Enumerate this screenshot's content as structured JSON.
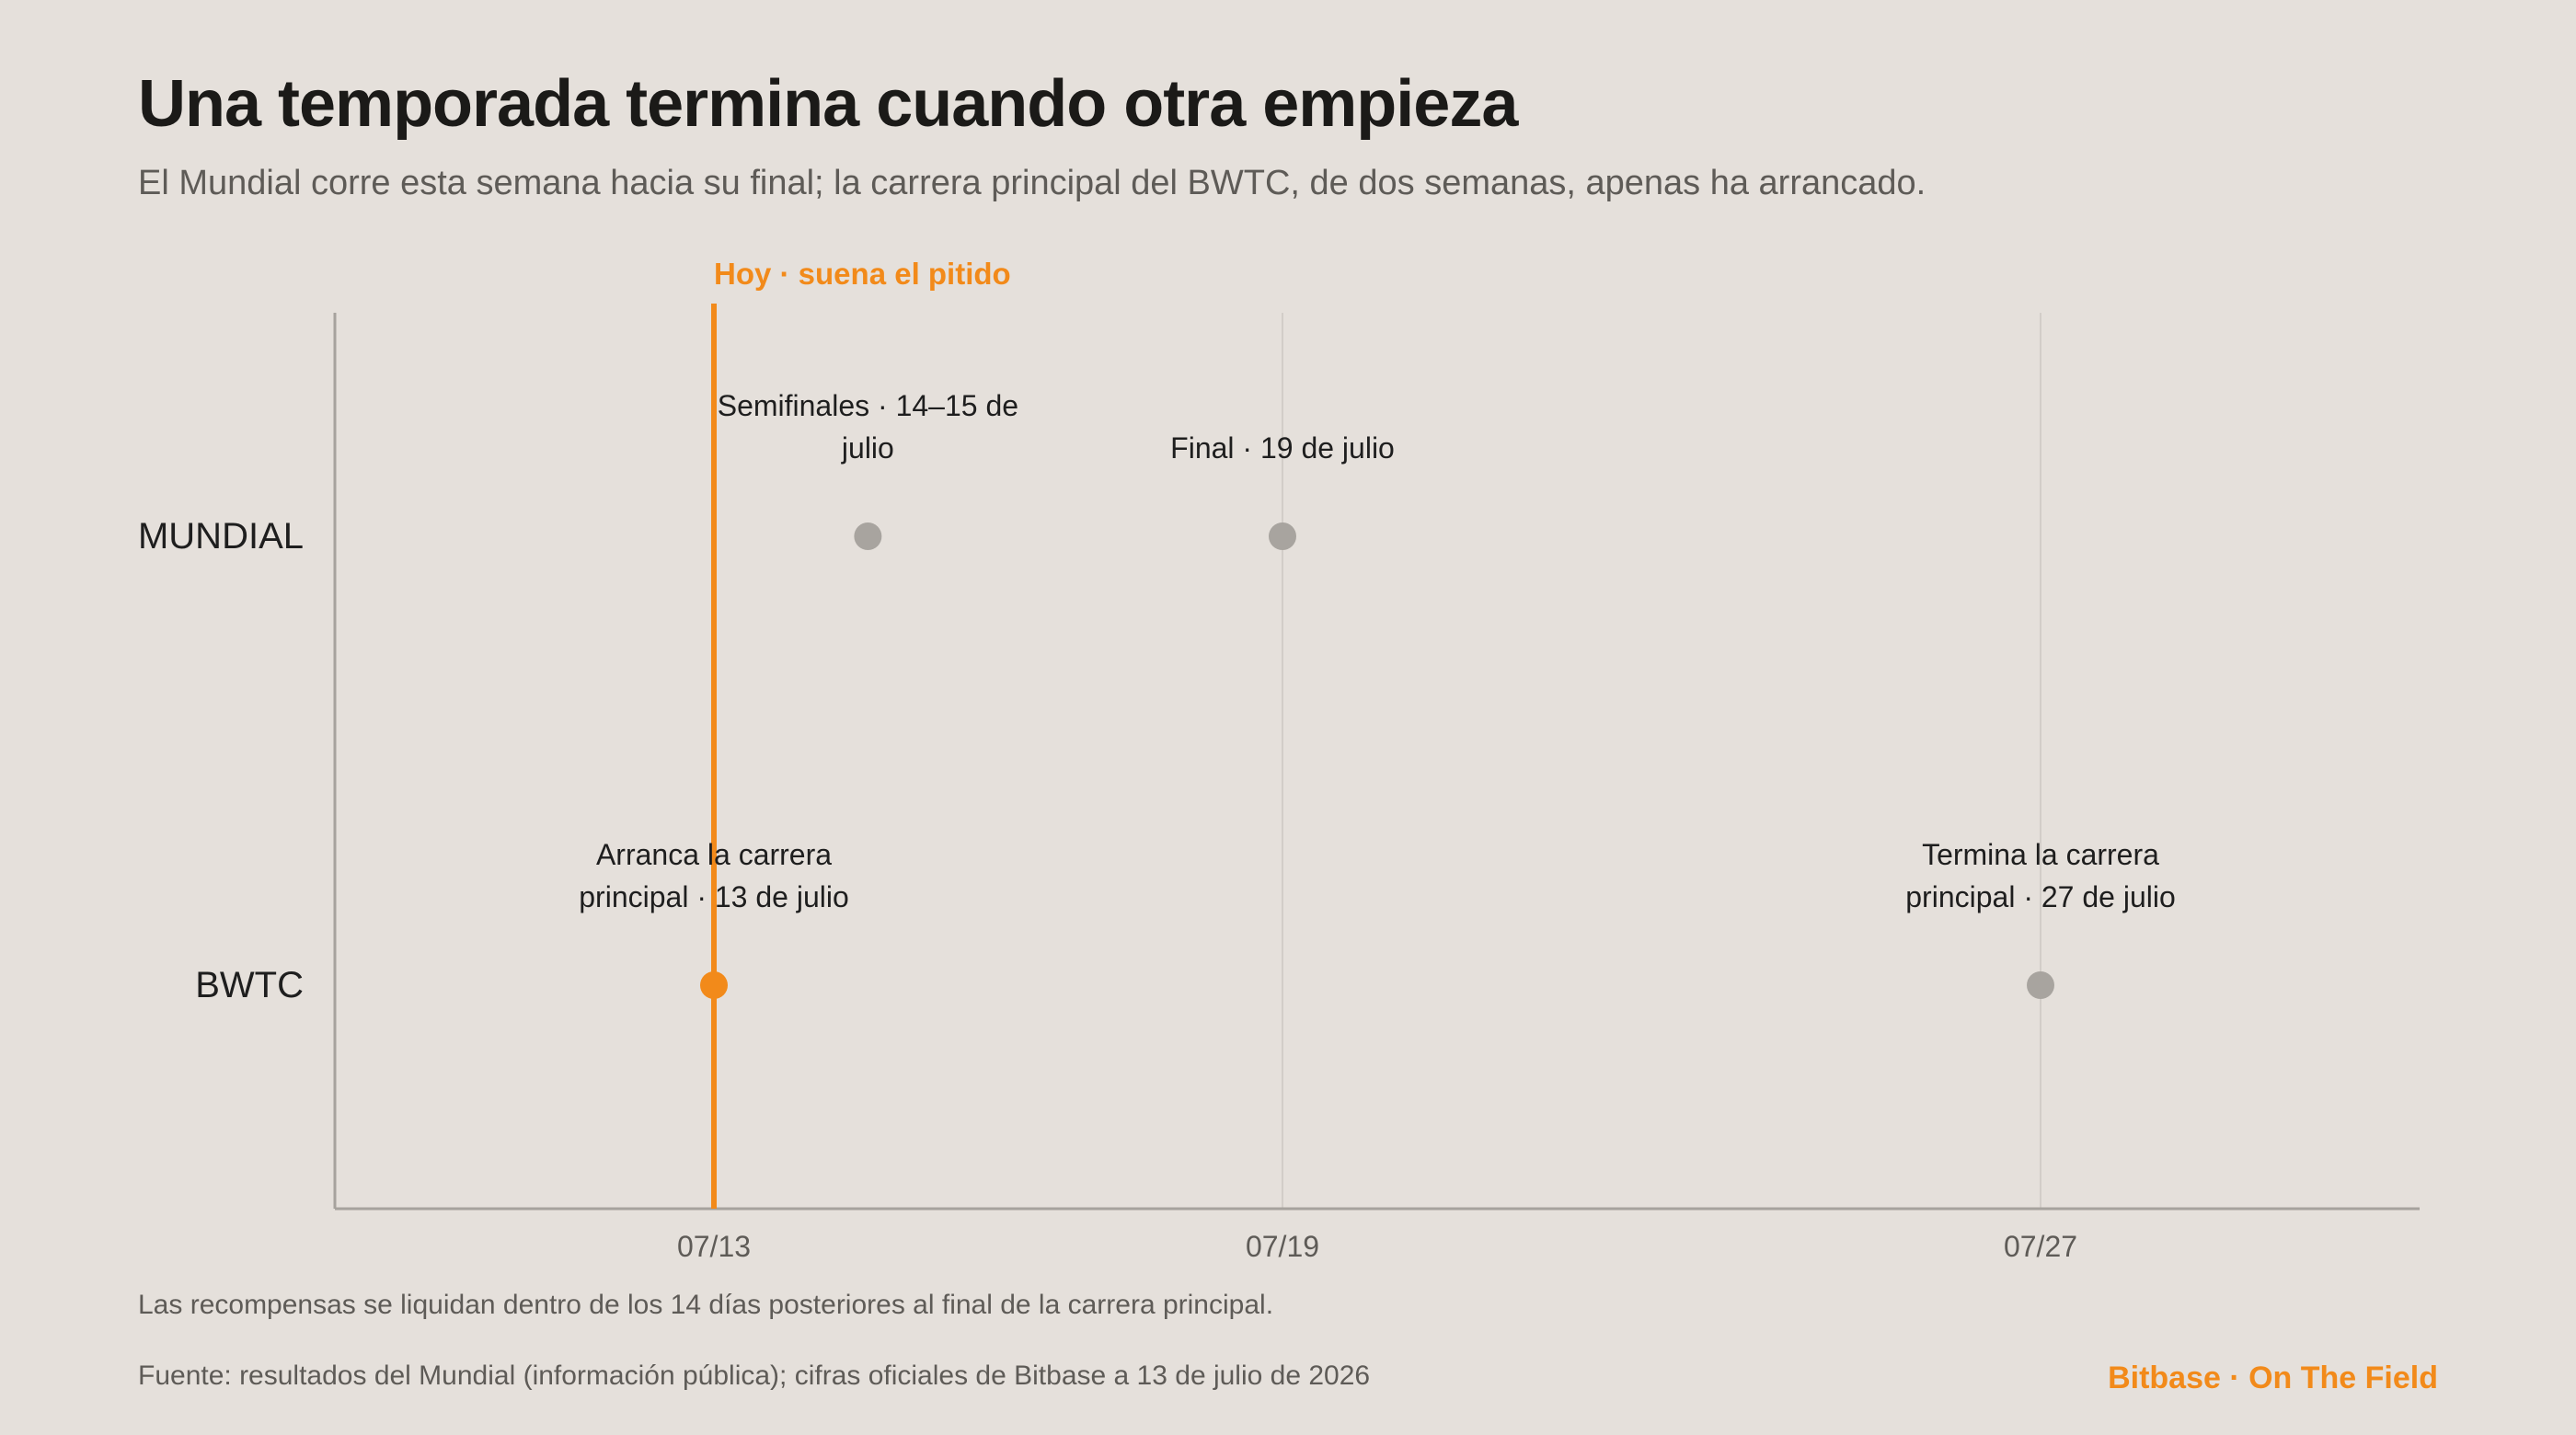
{
  "header": {
    "title": "Una temporada termina cuando otra empieza",
    "subtitle": "El Mundial corre esta semana hacia su final; la carrera principal del BWTC, de dos semanas, apenas ha arrancado."
  },
  "chart_data": {
    "type": "scatter",
    "title": "",
    "xlabel": "",
    "ylabel": "",
    "x_axis": {
      "type": "date",
      "range": [
        "2026-07-09",
        "2026-07-31"
      ],
      "ticks": [
        {
          "value": "2026-07-13",
          "label": "07/13"
        },
        {
          "value": "2026-07-19",
          "label": "07/19"
        },
        {
          "value": "2026-07-27",
          "label": "07/27"
        }
      ],
      "grid": true
    },
    "rows": [
      "MUNDIAL",
      "BWTC"
    ],
    "today": {
      "x": "2026-07-13",
      "label": "Hoy · suena el pitido",
      "color": "#f28a1a"
    },
    "events": [
      {
        "row": "MUNDIAL",
        "x": "2026-07-14T15:00",
        "lines": [
          "Semifinales · 14–15 de",
          "julio"
        ],
        "highlight": false
      },
      {
        "row": "MUNDIAL",
        "x": "2026-07-19",
        "lines": [
          "Final · 19 de julio"
        ],
        "highlight": false
      },
      {
        "row": "BWTC",
        "x": "2026-07-13",
        "lines": [
          "Arranca la carrera",
          "principal · 13 de julio"
        ],
        "highlight": true
      },
      {
        "row": "BWTC",
        "x": "2026-07-27",
        "lines": [
          "Termina la carrera",
          "principal · 27 de julio"
        ],
        "highlight": false
      }
    ],
    "colors": {
      "highlight": "#f28a1a",
      "point": "#a8a49f",
      "axis": "#a6a29d",
      "grid": "#d2cdc8"
    }
  },
  "footer": {
    "note": "Las recompensas se liquidan dentro de los 14 días posteriores al final de la carrera principal.",
    "source": "Fuente: resultados del Mundial (información pública); cifras oficiales de Bitbase a 13 de julio de 2026",
    "brand": "Bitbase · On The Field"
  }
}
